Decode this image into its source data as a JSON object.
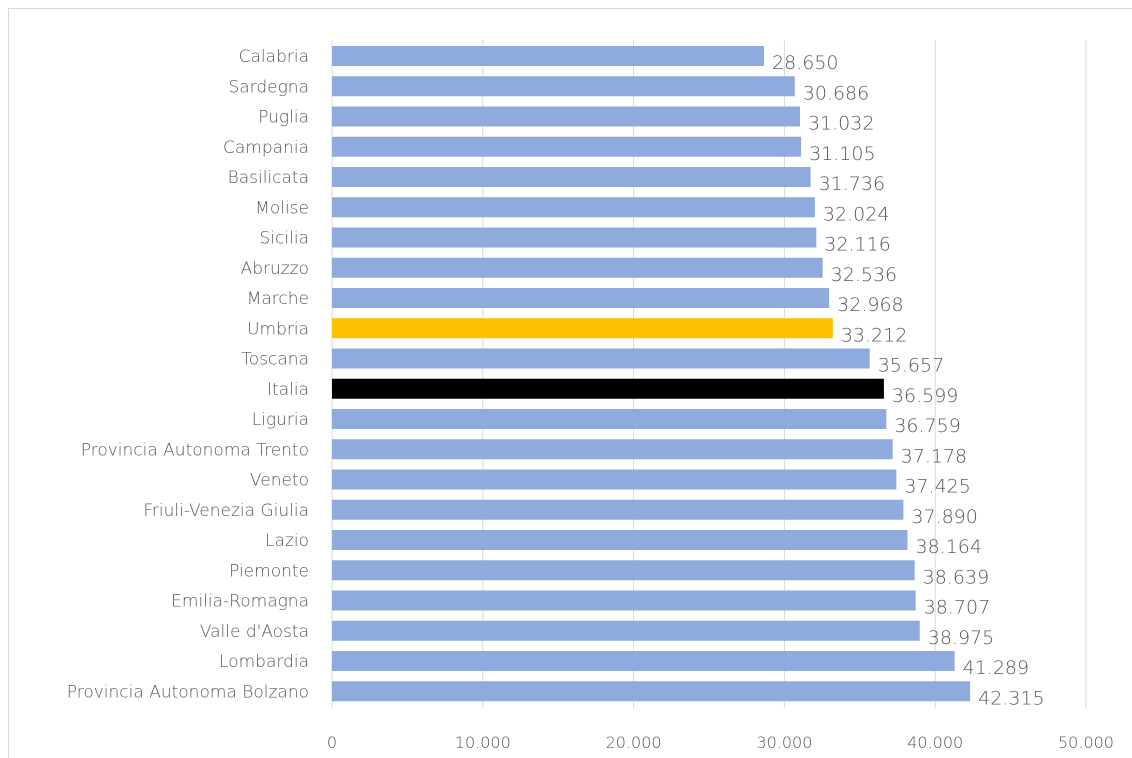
{
  "chart_data": {
    "type": "bar",
    "orientation": "horizontal",
    "categories": [
      "Calabria",
      "Sardegna",
      "Puglia",
      "Campania",
      "Basilicata",
      "Molise",
      "Sicilia",
      "Abruzzo",
      "Marche",
      "Umbria",
      "Toscana",
      "Italia",
      "Liguria",
      "Provincia Autonoma Trento",
      "Veneto",
      "Friuli-Venezia Giulia",
      "Lazio",
      "Piemonte",
      "Emilia-Romagna",
      "Valle d'Aosta",
      "Lombardia",
      "Provincia Autonoma Bolzano"
    ],
    "values": [
      28650,
      30686,
      31032,
      31105,
      31736,
      32024,
      32116,
      32536,
      32968,
      33212,
      35657,
      36599,
      36759,
      37178,
      37425,
      37890,
      38164,
      38639,
      38707,
      38975,
      41289,
      42315
    ],
    "value_labels": [
      "28.650",
      "30.686",
      "31.032",
      "31.105",
      "31.736",
      "32.024",
      "32.116",
      "32.536",
      "32.968",
      "33.212",
      "35.657",
      "36.599",
      "36.759",
      "37.178",
      "37.425",
      "37.890",
      "38.164",
      "38.639",
      "38.707",
      "38.975",
      "41.289",
      "42.315"
    ],
    "bar_colors": {
      "default": "#8faadc",
      "Umbria": "#ffc000",
      "Italia": "#000000"
    },
    "xlim": [
      0,
      50000
    ],
    "x_ticks": [
      0,
      10000,
      20000,
      30000,
      40000,
      50000
    ],
    "x_tick_labels": [
      "0",
      "10.000",
      "20.000",
      "30.000",
      "40.000",
      "50.000"
    ],
    "grid": true,
    "title": "",
    "xlabel": "",
    "ylabel": ""
  }
}
